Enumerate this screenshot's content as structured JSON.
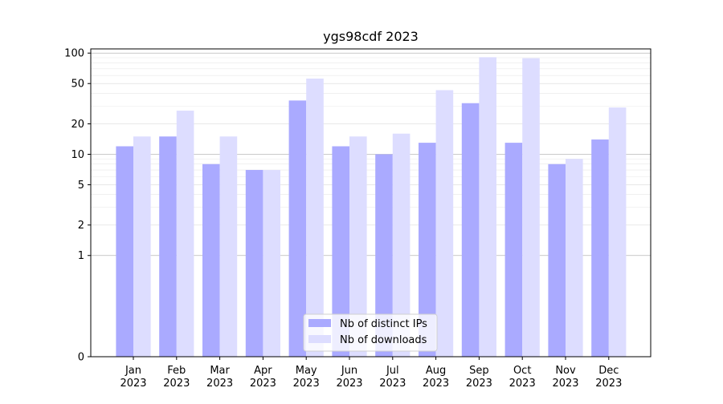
{
  "chart_data": {
    "type": "bar",
    "title": "ygs98cdf 2023",
    "xlabel": "",
    "ylabel": "",
    "y_scale": "symlog",
    "ylim": [
      0,
      110
    ],
    "y_ticks": [
      0,
      1,
      2,
      5,
      10,
      20,
      50,
      100
    ],
    "categories": [
      {
        "month": "Jan",
        "year": "2023"
      },
      {
        "month": "Feb",
        "year": "2023"
      },
      {
        "month": "Mar",
        "year": "2023"
      },
      {
        "month": "Apr",
        "year": "2023"
      },
      {
        "month": "May",
        "year": "2023"
      },
      {
        "month": "Jun",
        "year": "2023"
      },
      {
        "month": "Jul",
        "year": "2023"
      },
      {
        "month": "Aug",
        "year": "2023"
      },
      {
        "month": "Sep",
        "year": "2023"
      },
      {
        "month": "Oct",
        "year": "2023"
      },
      {
        "month": "Nov",
        "year": "2023"
      },
      {
        "month": "Dec",
        "year": "2023"
      }
    ],
    "series": [
      {
        "name": "Nb of distinct IPs",
        "color": "#aaaaff",
        "values": [
          12,
          15,
          8,
          7,
          34,
          12,
          10,
          13,
          32,
          13,
          8,
          14
        ]
      },
      {
        "name": "Nb of downloads",
        "color": "#ddddff",
        "values": [
          15,
          27,
          15,
          7,
          56,
          15,
          16,
          43,
          91,
          89,
          9,
          29
        ]
      }
    ],
    "legend_position": "bottom-center",
    "grid": true
  }
}
